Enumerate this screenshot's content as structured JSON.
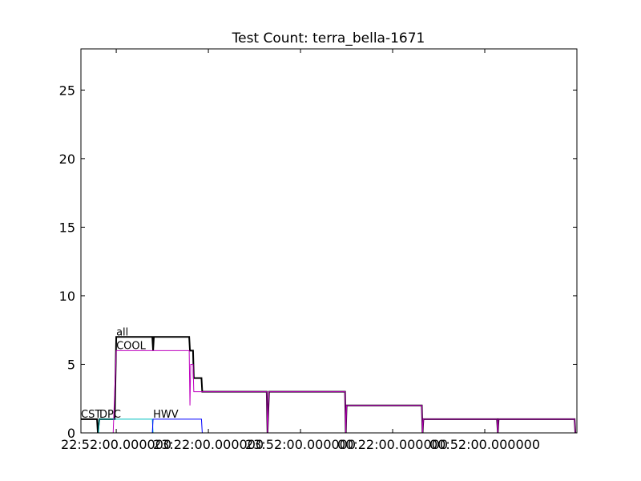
{
  "chart_data": {
    "type": "line",
    "title": "Test Count: terra_bella-1671",
    "xlim": [
      "22:40:30",
      "01:22:00"
    ],
    "xticks": [
      {
        "value": "22:52:00",
        "label": "22:52:00.000000"
      },
      {
        "value": "23:22:00",
        "label": "23:22:00.000000"
      },
      {
        "value": "23:52:00",
        "label": "23:52:00.000000"
      },
      {
        "value": "00:22:00",
        "label": "00:22:00.000000"
      },
      {
        "value": "00:52:00",
        "label": "00:52:00.000000"
      }
    ],
    "ylim": [
      0,
      28
    ],
    "yticks": [
      0,
      5,
      10,
      15,
      20,
      25
    ],
    "grid": false,
    "series": [
      {
        "name": "all",
        "color": "#000000",
        "width": 2,
        "x": [
          "22:40:30",
          "22:45:45",
          "22:46:00",
          "22:46:30",
          "22:51:30",
          "22:52:00",
          "23:03:45",
          "23:04:00",
          "23:04:15",
          "23:15:45",
          "23:16:00",
          "23:17:00",
          "23:17:15",
          "23:19:45",
          "23:20:00",
          "23:41:00",
          "23:41:15",
          "23:41:45",
          "00:06:30",
          "00:06:45",
          "00:07:00",
          "00:31:30",
          "00:31:45",
          "00:32:00",
          "00:56:00",
          "00:56:15",
          "00:56:30",
          "01:21:15",
          "01:21:30"
        ],
        "values": [
          1,
          1,
          0,
          1,
          1,
          7,
          7,
          6,
          7,
          7,
          6,
          6,
          4,
          4,
          3,
          3,
          0,
          3,
          3,
          0,
          2,
          2,
          0,
          1,
          1,
          0,
          1,
          1,
          0
        ]
      },
      {
        "name": "CST",
        "color": "#000000",
        "width": 1,
        "x": [
          "22:40:30",
          "22:45:45",
          "22:46:00",
          "01:22:00"
        ],
        "values": [
          1,
          1,
          0,
          0
        ]
      },
      {
        "name": "COOL",
        "color": "#bf00bf",
        "width": 1,
        "x": [
          "22:40:30",
          "22:51:00",
          "22:52:00",
          "23:15:45",
          "23:16:00",
          "23:16:15",
          "23:17:00",
          "23:17:15",
          "23:41:00",
          "23:41:15",
          "23:41:45",
          "00:06:30",
          "00:06:45",
          "00:07:00",
          "00:31:30",
          "00:31:45",
          "00:32:00",
          "00:56:00",
          "00:56:15",
          "00:56:30",
          "01:21:15",
          "01:21:30"
        ],
        "values": [
          0,
          0,
          6,
          6,
          2,
          5,
          5,
          3,
          3,
          0,
          3,
          3,
          0,
          2,
          2,
          0,
          1,
          1,
          0,
          1,
          1,
          0
        ]
      },
      {
        "name": "DPC",
        "color": "#00bfbf",
        "width": 1,
        "x": [
          "22:46:15",
          "22:46:30",
          "23:03:45",
          "23:04:00",
          "01:22:00"
        ],
        "values": [
          0,
          1,
          1,
          0,
          0
        ]
      },
      {
        "name": "HWV",
        "color": "#0000ff",
        "width": 1,
        "x": [
          "23:03:45",
          "23:04:00",
          "23:19:45",
          "23:20:00",
          "01:22:00"
        ],
        "values": [
          0,
          1,
          1,
          0,
          0
        ]
      }
    ]
  }
}
